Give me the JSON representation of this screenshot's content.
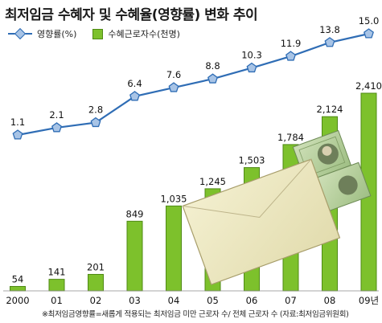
{
  "title": "최저임금 수혜자 및 수혜율(영향률) 변화 추이",
  "footnote": "※최저임금영향률=새롭게 적용되는 최저임금 미만 근로자 수/ 전체 근로자 수 (자료:최저임금위원회)",
  "legend": [
    {
      "label": "영향률(%)",
      "type": "line"
    },
    {
      "label": "수혜근로자수(천명)",
      "type": "bar"
    }
  ],
  "colors": {
    "bar": "#7dc12c",
    "bar_stroke": "#4f8a15",
    "line": "#2f6db5",
    "marker": "#a8c4e6"
  },
  "chart_data": {
    "type": "bar",
    "title": "최저임금 수혜자 및 수혜율(영향률) 변화 추이",
    "categories": [
      "2000",
      "01",
      "02",
      "03",
      "04",
      "05",
      "06",
      "07",
      "08",
      "09년"
    ],
    "series": [
      {
        "name": "수혜근로자수(천명)",
        "type": "bar",
        "values": [
          54,
          141,
          201,
          849,
          1035,
          1245,
          1503,
          1784,
          2124,
          2410
        ],
        "labels": [
          "54",
          "141",
          "201",
          "849",
          "1,035",
          "1,245",
          "1,503",
          "1,784",
          "2,124",
          "2,410"
        ]
      },
      {
        "name": "영향률(%)",
        "type": "line",
        "values": [
          1.1,
          2.1,
          2.8,
          6.4,
          7.6,
          8.8,
          10.3,
          11.9,
          13.8,
          15.0
        ],
        "labels": [
          "1.1",
          "2.1",
          "2.8",
          "6.4",
          "7.6",
          "8.8",
          "10.3",
          "11.9",
          "13.8",
          "15.0"
        ]
      }
    ],
    "ylim_bar": [
      0,
      2410
    ],
    "ylim_line": [
      1.1,
      15.0
    ],
    "grid": false,
    "legend_position": "top-left"
  }
}
